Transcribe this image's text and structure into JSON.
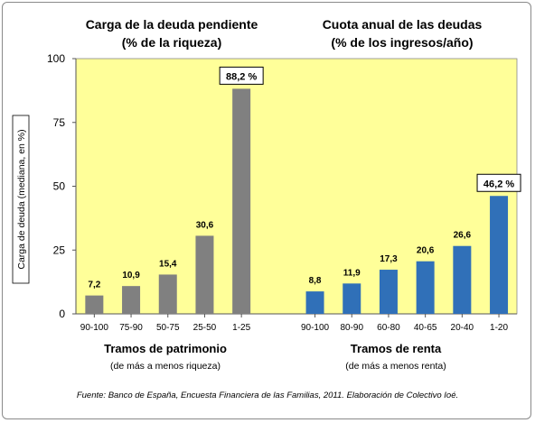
{
  "chart_data": {
    "type": "bar",
    "ylabel": "Carga de deuda (mediana, en %)",
    "ylim": [
      0,
      100
    ],
    "yticks": [
      0,
      25,
      50,
      75,
      100
    ],
    "grid": false,
    "source": "Fuente: Banco de España, Encuesta Financiera de las Familias, 2011. Elaboración de Colectivo Ioé.",
    "colors": {
      "plot_bg": "#ffff99",
      "wealth": "#808080",
      "income": "#3070b8"
    },
    "groups": [
      {
        "title_line1": "Carga de la deuda pendiente",
        "title_line2": "(% de la riqueza)",
        "xlabel": "Tramos de patrimonio",
        "xsublabel": "(de más a menos riqueza)",
        "categories": [
          "90-100",
          "75-90",
          "50-75",
          "25-50",
          "1-25"
        ],
        "values": [
          7.2,
          10.9,
          15.4,
          30.6,
          88.2
        ],
        "labels": [
          "7,2",
          "10,9",
          "15,4",
          "30,6",
          "88,2 %"
        ],
        "highlight_index": 4,
        "color": "#808080"
      },
      {
        "title_line1": "Cuota anual de las deudas",
        "title_line2": "(% de los ingresos/año)",
        "xlabel": "Tramos de renta",
        "xsublabel": "(de más a menos renta)",
        "categories": [
          "90-100",
          "80-90",
          "60-80",
          "40-65",
          "20-40",
          "1-20"
        ],
        "values": [
          8.8,
          11.9,
          17.3,
          20.6,
          26.6,
          46.2
        ],
        "labels": [
          "8,8",
          "11,9",
          "17,3",
          "20,6",
          "26,6",
          "46,2 %"
        ],
        "highlight_index": 5,
        "color": "#3070b8"
      }
    ]
  }
}
